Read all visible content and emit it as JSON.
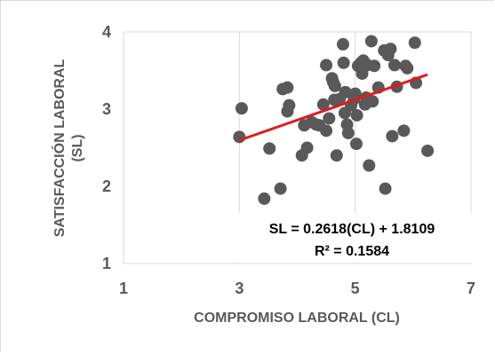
{
  "chart_data": {
    "type": "scatter",
    "xlabel": "COMPROMISO LABORAL (CL)",
    "ylabel_line1": "SATISFACCIÓN LABORAL",
    "ylabel_line2": "(SL)",
    "xlim": [
      1,
      7
    ],
    "ylim": [
      1,
      4
    ],
    "x_ticks": [
      1,
      3,
      5,
      7
    ],
    "y_ticks": [
      1,
      2,
      3,
      4
    ],
    "x_tick_labels": [
      "1",
      "3",
      "5",
      "7"
    ],
    "y_tick_labels": [
      "1",
      "2",
      "3",
      "4"
    ],
    "grid": "vertical-major",
    "marker_color": "#595959",
    "trend_color": "#e31a1c",
    "trendline": {
      "slope": 0.2618,
      "intercept": 1.8109,
      "x_range": [
        3.0,
        6.25
      ]
    },
    "equation": "SL = 0.2618(CL) + 1.8109",
    "r_squared": "R² = 0.1584",
    "points": [
      {
        "x": 3.0,
        "y": 2.64
      },
      {
        "x": 3.04,
        "y": 3.01
      },
      {
        "x": 3.43,
        "y": 1.84
      },
      {
        "x": 3.52,
        "y": 2.49
      },
      {
        "x": 3.71,
        "y": 1.97
      },
      {
        "x": 3.75,
        "y": 3.26
      },
      {
        "x": 3.83,
        "y": 3.28
      },
      {
        "x": 3.83,
        "y": 2.97
      },
      {
        "x": 3.86,
        "y": 3.05
      },
      {
        "x": 4.08,
        "y": 2.4
      },
      {
        "x": 4.17,
        "y": 2.5
      },
      {
        "x": 4.12,
        "y": 2.79
      },
      {
        "x": 4.25,
        "y": 2.83
      },
      {
        "x": 4.33,
        "y": 2.8
      },
      {
        "x": 4.38,
        "y": 2.79
      },
      {
        "x": 4.45,
        "y": 3.06
      },
      {
        "x": 4.5,
        "y": 3.57
      },
      {
        "x": 4.5,
        "y": 2.72
      },
      {
        "x": 4.55,
        "y": 2.88
      },
      {
        "x": 4.6,
        "y": 3.4
      },
      {
        "x": 4.62,
        "y": 3.35
      },
      {
        "x": 4.65,
        "y": 3.3
      },
      {
        "x": 4.64,
        "y": 3.12
      },
      {
        "x": 4.68,
        "y": 2.4
      },
      {
        "x": 4.73,
        "y": 3.13
      },
      {
        "x": 4.79,
        "y": 3.84
      },
      {
        "x": 4.8,
        "y": 3.6
      },
      {
        "x": 4.82,
        "y": 2.95
      },
      {
        "x": 4.83,
        "y": 3.22
      },
      {
        "x": 4.86,
        "y": 2.8
      },
      {
        "x": 4.88,
        "y": 2.69
      },
      {
        "x": 4.93,
        "y": 3.05
      },
      {
        "x": 4.98,
        "y": 3.13
      },
      {
        "x": 5.0,
        "y": 3.2
      },
      {
        "x": 5.03,
        "y": 2.92
      },
      {
        "x": 5.02,
        "y": 2.55
      },
      {
        "x": 5.05,
        "y": 3.56
      },
      {
        "x": 5.1,
        "y": 3.6
      },
      {
        "x": 5.12,
        "y": 3.46
      },
      {
        "x": 5.14,
        "y": 3.63
      },
      {
        "x": 5.17,
        "y": 3.06
      },
      {
        "x": 5.19,
        "y": 3.15
      },
      {
        "x": 5.21,
        "y": 3.57
      },
      {
        "x": 5.24,
        "y": 2.27
      },
      {
        "x": 5.28,
        "y": 3.88
      },
      {
        "x": 5.3,
        "y": 3.1
      },
      {
        "x": 5.33,
        "y": 3.56
      },
      {
        "x": 5.4,
        "y": 3.28
      },
      {
        "x": 5.5,
        "y": 3.76
      },
      {
        "x": 5.52,
        "y": 1.97
      },
      {
        "x": 5.57,
        "y": 3.7
      },
      {
        "x": 5.61,
        "y": 3.78
      },
      {
        "x": 5.64,
        "y": 2.65
      },
      {
        "x": 5.68,
        "y": 3.57
      },
      {
        "x": 5.72,
        "y": 3.29
      },
      {
        "x": 5.84,
        "y": 2.72
      },
      {
        "x": 5.87,
        "y": 3.56
      },
      {
        "x": 5.9,
        "y": 3.53
      },
      {
        "x": 6.03,
        "y": 3.86
      },
      {
        "x": 6.05,
        "y": 3.34
      },
      {
        "x": 6.25,
        "y": 2.46
      }
    ]
  }
}
